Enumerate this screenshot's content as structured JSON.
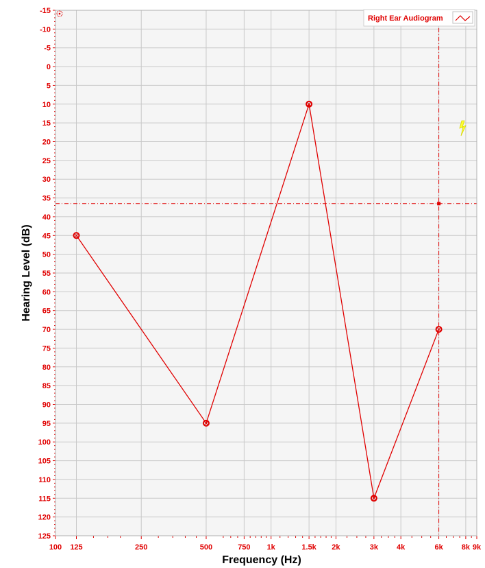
{
  "chart_data": {
    "type": "line",
    "xscale": "log",
    "x_range": [
      100,
      9000
    ],
    "y_range": [
      -15,
      125
    ],
    "y_inverted": true,
    "xlabel": "Frequency (Hz)",
    "ylabel": "Hearing Level (dB)",
    "x_ticks": [
      {
        "value": 100,
        "label": "100"
      },
      {
        "value": 125,
        "label": "125"
      },
      {
        "value": 250,
        "label": "250"
      },
      {
        "value": 500,
        "label": "500"
      },
      {
        "value": 750,
        "label": "750"
      },
      {
        "value": 1000,
        "label": "1k"
      },
      {
        "value": 1500,
        "label": "1.5k"
      },
      {
        "value": 2000,
        "label": "2k"
      },
      {
        "value": 3000,
        "label": "3k"
      },
      {
        "value": 4000,
        "label": "4k"
      },
      {
        "value": 6000,
        "label": "6k"
      },
      {
        "value": 8000,
        "label": "8k"
      },
      {
        "value": 9000,
        "label": "9k"
      }
    ],
    "y_ticks": [
      -15,
      -10,
      -5,
      0,
      5,
      10,
      15,
      20,
      25,
      30,
      35,
      40,
      45,
      50,
      55,
      60,
      65,
      70,
      75,
      80,
      85,
      90,
      95,
      100,
      105,
      110,
      115,
      120,
      125
    ],
    "series": [
      {
        "name": "Right Ear Audiogram",
        "color": "#e00000",
        "x": [
          125,
          500,
          1500,
          3000,
          6000
        ],
        "y": [
          45,
          95,
          10,
          115,
          70
        ]
      }
    ],
    "cursor": {
      "x": 6000,
      "y": 36.5
    },
    "legend_position": "top-right",
    "grid": true,
    "colors": {
      "series": "#e00000",
      "grid": "#c8c8c8",
      "plot_bg": "#f5f5f5",
      "axis_text": "#e00000"
    }
  }
}
